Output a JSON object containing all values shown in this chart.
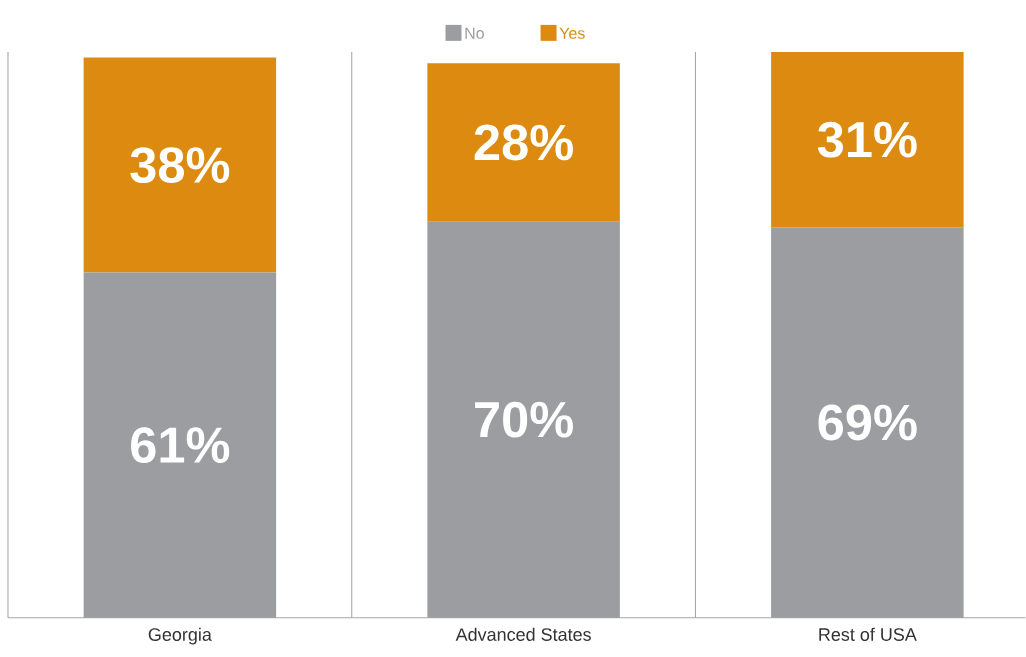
{
  "chart_data": {
    "type": "bar",
    "stacked": true,
    "categories": [
      "Georgia",
      "Advanced States",
      "Rest of USA"
    ],
    "series": [
      {
        "name": "No",
        "color": "#9c9da1",
        "values": [
          61,
          70,
          69
        ],
        "value_labels": [
          "61%",
          "70%",
          "69%"
        ]
      },
      {
        "name": "Yes",
        "color": "#dc8b10",
        "values": [
          38,
          28,
          31
        ],
        "value_labels": [
          "38%",
          "28%",
          "31%"
        ]
      }
    ],
    "legend": "top"
  }
}
